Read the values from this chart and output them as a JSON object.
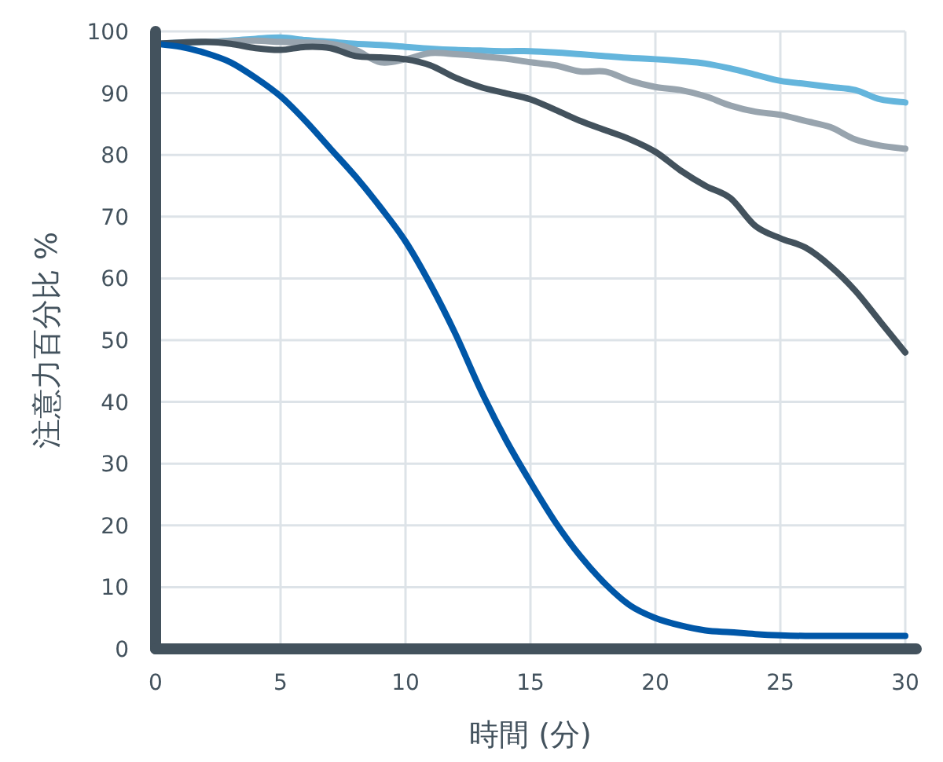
{
  "chart_data": {
    "type": "line",
    "xlabel": "時間 (分)",
    "ylabel": "注意力百分比 %",
    "xlim": [
      0,
      30
    ],
    "ylim": [
      0,
      100
    ],
    "xticks": [
      0,
      5,
      10,
      15,
      20,
      25,
      30
    ],
    "yticks": [
      0,
      10,
      20,
      30,
      40,
      50,
      60,
      70,
      80,
      90,
      100
    ],
    "grid": true,
    "marker": "none",
    "line_style": "solid",
    "x": [
      0,
      1,
      2,
      3,
      4,
      5,
      6,
      7,
      8,
      9,
      10,
      11,
      12,
      13,
      14,
      15,
      16,
      17,
      18,
      19,
      20,
      21,
      22,
      23,
      24,
      25,
      26,
      27,
      28,
      29,
      30
    ],
    "series": [
      {
        "color": "#64b5dc",
        "values": [
          98,
          98.2,
          98.3,
          98.5,
          98.8,
          99,
          98.6,
          98.3,
          98,
          97.8,
          97.5,
          97.2,
          97,
          96.9,
          96.8,
          96.8,
          96.6,
          96.3,
          96,
          95.7,
          95.5,
          95.2,
          94.8,
          94,
          93,
          92,
          91.5,
          91,
          90.5,
          89,
          88.5
        ]
      },
      {
        "color": "#98a4ae",
        "values": [
          98,
          98.2,
          98.3,
          98.4,
          98.5,
          98.3,
          98.2,
          98,
          97,
          95,
          95.5,
          96.5,
          96.3,
          96,
          95.6,
          95,
          94.5,
          93.5,
          93.5,
          92,
          91,
          90.5,
          89.5,
          88,
          87,
          86.5,
          85.5,
          84.5,
          82.5,
          81.5,
          81
        ]
      },
      {
        "color": "#43525d",
        "values": [
          98,
          98.2,
          98.3,
          98,
          97.3,
          97,
          97.5,
          97.3,
          96,
          95.8,
          95.5,
          94.5,
          92.5,
          91,
          90,
          89,
          87.3,
          85.5,
          84,
          82.5,
          80.5,
          77.5,
          75,
          73,
          68.5,
          66.5,
          65,
          62,
          58,
          53,
          48
        ]
      },
      {
        "color": "#0057a8",
        "values": [
          98,
          97.5,
          96.5,
          95,
          92.5,
          89.5,
          85.5,
          81,
          76.5,
          71.5,
          66,
          59,
          51,
          42,
          34,
          27,
          20.5,
          15,
          10.5,
          7,
          5,
          3.8,
          3,
          2.7,
          2.4,
          2.2,
          2.1,
          2.1,
          2.1,
          2.1,
          2.1
        ]
      }
    ]
  }
}
